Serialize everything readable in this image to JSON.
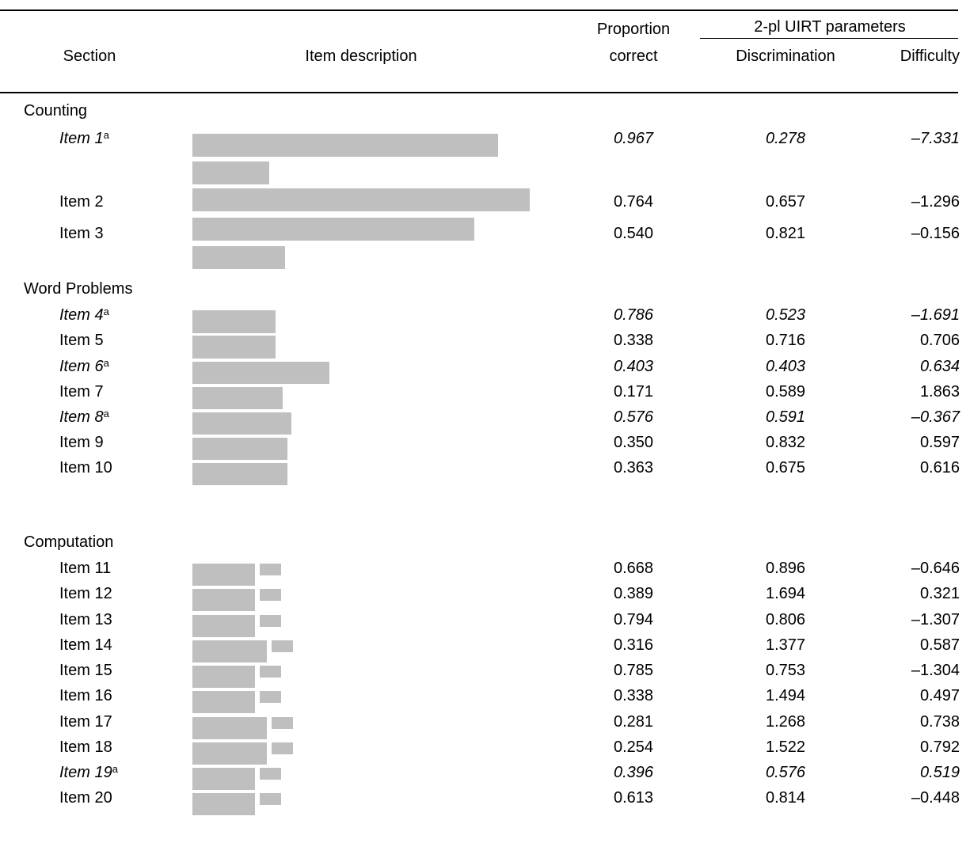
{
  "header": {
    "section": "Section",
    "item_description": "Item description",
    "proportion_line1": "Proportion",
    "proportion_line2": "correct",
    "uirt_group": "2-pl UIRT parameters",
    "discrimination": "Discrimination",
    "difficulty": "Difficulty"
  },
  "sections": [
    {
      "title": "Counting"
    },
    {
      "title": "Word Problems"
    },
    {
      "title": "Computation"
    }
  ],
  "rows": [
    {
      "label": "Item 1",
      "marker": "a",
      "italic": true,
      "p": "0.967",
      "disc": "0.278",
      "diff": "–7.331"
    },
    {
      "label": "Item 2",
      "marker": "",
      "italic": false,
      "p": "0.764",
      "disc": "0.657",
      "diff": "–1.296"
    },
    {
      "label": "Item 3",
      "marker": "",
      "italic": false,
      "p": "0.540",
      "disc": "0.821",
      "diff": "–0.156"
    },
    {
      "label": "Item 4",
      "marker": "a",
      "italic": true,
      "p": "0.786",
      "disc": "0.523",
      "diff": "–1.691"
    },
    {
      "label": "Item 5",
      "marker": "",
      "italic": false,
      "p": "0.338",
      "disc": "0.716",
      "diff": "0.706"
    },
    {
      "label": "Item 6",
      "marker": "a",
      "italic": true,
      "p": "0.403",
      "disc": "0.403",
      "diff": "0.634"
    },
    {
      "label": "Item 7",
      "marker": "",
      "italic": false,
      "p": "0.171",
      "disc": "0.589",
      "diff": "1.863"
    },
    {
      "label": "Item 8",
      "marker": "a",
      "italic": true,
      "p": "0.576",
      "disc": "0.591",
      "diff": "–0.367"
    },
    {
      "label": "Item 9",
      "marker": "",
      "italic": false,
      "p": "0.350",
      "disc": "0.832",
      "diff": "0.597"
    },
    {
      "label": "Item 10",
      "marker": "",
      "italic": false,
      "p": "0.363",
      "disc": "0.675",
      "diff": "0.616"
    },
    {
      "label": "Item 11",
      "marker": "",
      "italic": false,
      "p": "0.668",
      "disc": "0.896",
      "diff": "–0.646"
    },
    {
      "label": "Item 12",
      "marker": "",
      "italic": false,
      "p": "0.389",
      "disc": "1.694",
      "diff": "0.321"
    },
    {
      "label": "Item 13",
      "marker": "",
      "italic": false,
      "p": "0.794",
      "disc": "0.806",
      "diff": "–1.307"
    },
    {
      "label": "Item 14",
      "marker": "",
      "italic": false,
      "p": "0.316",
      "disc": "1.377",
      "diff": "0.587"
    },
    {
      "label": "Item 15",
      "marker": "",
      "italic": false,
      "p": "0.785",
      "disc": "0.753",
      "diff": "–1.304"
    },
    {
      "label": "Item 16",
      "marker": "",
      "italic": false,
      "p": "0.338",
      "disc": "1.494",
      "diff": "0.497"
    },
    {
      "label": "Item 17",
      "marker": "",
      "italic": false,
      "p": "0.281",
      "disc": "1.268",
      "diff": "0.738"
    },
    {
      "label": "Item 18",
      "marker": "",
      "italic": false,
      "p": "0.254",
      "disc": "1.522",
      "diff": "0.792"
    },
    {
      "label": "Item 19",
      "marker": "a",
      "italic": true,
      "p": "0.396",
      "disc": "0.576",
      "diff": "0.519"
    },
    {
      "label": "Item 20",
      "marker": "",
      "italic": false,
      "p": "0.613",
      "disc": "0.814",
      "diff": "–0.448"
    }
  ]
}
